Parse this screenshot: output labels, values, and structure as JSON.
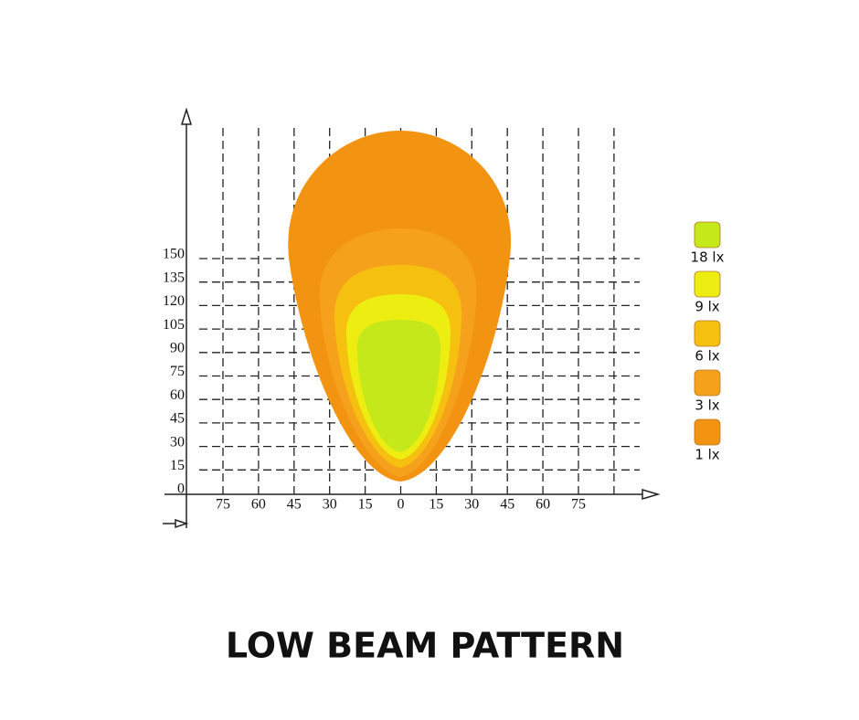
{
  "title": "LOW BEAM PATTERN",
  "y_axis_labels": [
    "0",
    "15",
    "30",
    "45",
    "60",
    "75",
    "90",
    "105",
    "120",
    "135",
    "150"
  ],
  "x_axis_labels": [
    "75",
    "60",
    "45",
    "30",
    "15",
    "0",
    "15",
    "30",
    "45",
    "60",
    "75"
  ],
  "legend": [
    {
      "label": "18 lx",
      "color": "#c5e81a"
    },
    {
      "label": "9 lx",
      "color": "#eded12"
    },
    {
      "label": "6 lx",
      "color": "#f5c00f"
    },
    {
      "label": "3 lx",
      "color": "#f6a11c"
    },
    {
      "label": "1 lx",
      "color": "#f39312"
    }
  ]
}
